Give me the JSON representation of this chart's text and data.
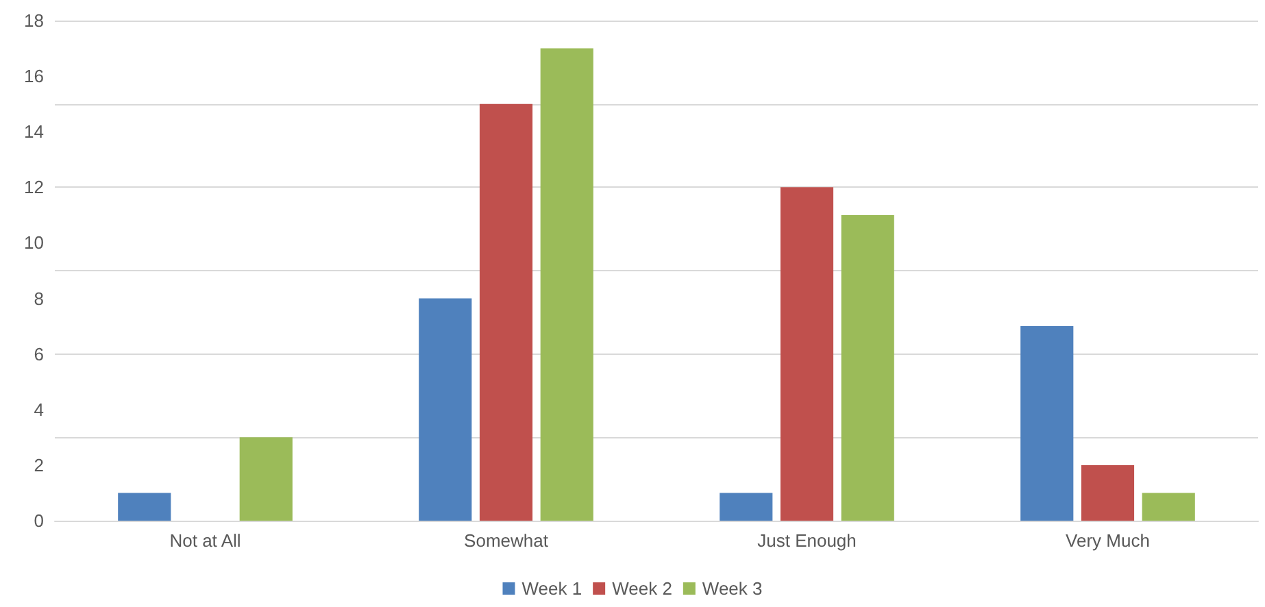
{
  "chart_data": {
    "type": "bar",
    "categories": [
      "Not at All",
      "Somewhat",
      "Just Enough",
      "Very Much"
    ],
    "series": [
      {
        "name": "Week 1",
        "color": "#4f81bd",
        "values": [
          1,
          8,
          1,
          7
        ]
      },
      {
        "name": "Week 2",
        "color": "#c0504d",
        "values": [
          0,
          15,
          12,
          2
        ]
      },
      {
        "name": "Week 3",
        "color": "#9bbb59",
        "values": [
          3,
          17,
          11,
          1
        ]
      }
    ],
    "ylim": [
      0,
      18
    ],
    "yticks": [
      0,
      2,
      4,
      6,
      8,
      10,
      12,
      14,
      16,
      18
    ],
    "grid": "y",
    "legend": "bottom"
  }
}
